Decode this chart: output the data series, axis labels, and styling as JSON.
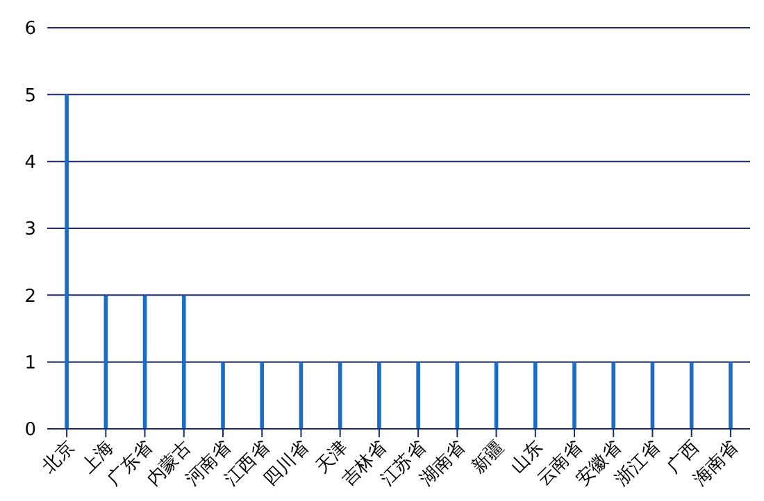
{
  "chart_data": {
    "type": "bar",
    "categories": [
      "北京",
      "上海",
      "广东省",
      "内蒙古",
      "河南省",
      "江西省",
      "四川省",
      "天津",
      "吉林省",
      "江苏省",
      "湖南省",
      "新疆",
      "山东",
      "云南省",
      "安徽省",
      "浙江省",
      "广西",
      "海南省"
    ],
    "values": [
      5,
      2,
      2,
      2,
      1,
      1,
      1,
      1,
      1,
      1,
      1,
      1,
      1,
      1,
      1,
      1,
      1,
      1
    ],
    "color": "#1a6cc4",
    "ylim": [
      0,
      6
    ],
    "yticks": [
      0,
      1,
      2,
      3,
      4,
      5,
      6
    ],
    "grid": "y"
  }
}
